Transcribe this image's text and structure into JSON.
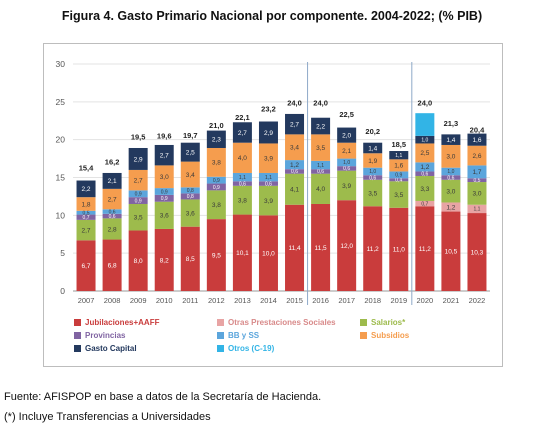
{
  "title": "Figura 4.  Gasto Primario Nacional por componente. 2004-2022; (% PIB)",
  "source_line": "Fuente: AFISPOP en base a datos de la Secretaría de Hacienda.",
  "note_line": "(*) Incluye Transferencias a Universidades",
  "chart_data": {
    "type": "bar",
    "stacked": true,
    "title": "Figura 4.  Gasto Primario Nacional por componente. 2004-2022; (% PIB)",
    "xlabel": "",
    "ylabel": "",
    "ylim": [
      0,
      30
    ],
    "yticks": [
      0,
      5,
      10,
      15,
      20,
      25,
      30
    ],
    "grid": true,
    "legend_position": "bottom",
    "separator_after_categories": [
      "2015",
      "2019"
    ],
    "categories": [
      "2007",
      "2008",
      "2009",
      "2010",
      "2011",
      "2012",
      "2013",
      "2014",
      "2015",
      "2016",
      "2017",
      "2018",
      "2019",
      "2020",
      "2021",
      "2022"
    ],
    "totals": [
      "15,4",
      "16,2",
      "19,5",
      "19,6",
      "19,7",
      "21,0",
      "22,1",
      "23,2",
      "24,0",
      "24,0",
      "22,5",
      "20,2",
      "18,5",
      "24,0",
      "21,3",
      "20,4"
    ],
    "total_values": [
      15.4,
      16.2,
      19.5,
      19.6,
      19.7,
      21.0,
      22.1,
      23.2,
      24.0,
      24.0,
      22.5,
      20.2,
      18.5,
      24.0,
      21.3,
      20.4
    ],
    "series": [
      {
        "name": "Jubilaciones+AAFF",
        "color": "#c93c3c",
        "values": [
          6.7,
          6.8,
          8.0,
          8.2,
          8.5,
          9.5,
          10.1,
          10.0,
          11.4,
          11.5,
          12.0,
          11.2,
          11.0,
          11.2,
          10.5,
          10.3
        ],
        "labels": [
          "6,7",
          "6,8",
          "8,0",
          "8,2",
          "8,5",
          "9,5",
          "10,1",
          "10,0",
          "11,4",
          "11,5",
          "12,0",
          "11,2",
          "11,0",
          "11,2",
          "10,5",
          "10,3"
        ]
      },
      {
        "name": "Otras Prestaciones Sociales",
        "color": "#e8a4a4",
        "values": [
          0,
          0,
          0,
          0,
          0,
          0,
          0,
          0,
          0,
          0,
          0,
          0,
          0,
          0.7,
          1.2,
          1.1
        ],
        "labels": [
          "",
          "",
          "",
          "",
          "",
          "",
          "",
          "",
          "",
          "",
          "",
          "",
          "",
          "0,7",
          "1,2",
          "1,1"
        ]
      },
      {
        "name": "Salarios*",
        "color": "#9dbb4c",
        "values": [
          2.7,
          2.8,
          3.5,
          3.6,
          3.6,
          3.8,
          3.8,
          3.9,
          4.1,
          4.0,
          3.9,
          3.5,
          3.5,
          3.3,
          3.0,
          3.0
        ],
        "labels": [
          "2,7",
          "2,8",
          "3,5",
          "3,6",
          "3,6",
          "3,8",
          "3,8",
          "3,9",
          "4,1",
          "4,0",
          "3,9",
          "3,5",
          "3,5",
          "3,3",
          "3,0",
          "3,0"
        ]
      },
      {
        "name": "Provincias",
        "color": "#8064a2",
        "values": [
          0.7,
          0.6,
          0.9,
          0.9,
          0.8,
          0.9,
          0.6,
          0.6,
          0.6,
          0.6,
          0.6,
          0.6,
          0.4,
          0.6,
          0.6,
          0.5
        ],
        "labels": [
          "0,7",
          "0,6",
          "0,9",
          "0,9",
          "0,8",
          "0,9",
          "0,6",
          "0,6",
          "0,6",
          "0,6",
          "0,6",
          "0,6",
          "0,4",
          "0,6",
          "0,6",
          "0,5"
        ]
      },
      {
        "name": "BB y SS",
        "color": "#5ba5dc",
        "values": [
          0.5,
          0.6,
          0.9,
          0.9,
          0.8,
          0.9,
          1.1,
          1.1,
          1.2,
          1.1,
          1.0,
          1.0,
          0.9,
          1.2,
          1.0,
          1.7
        ],
        "labels": [
          "0,5",
          "0,6",
          "0,9",
          "0,9",
          "0,8",
          "0,9",
          "1,1",
          "1,1",
          "1,2",
          "1,1",
          "1,0",
          "1,0",
          "0,9",
          "1,2",
          "1,0",
          "1,7"
        ]
      },
      {
        "name": "Subsidios",
        "color": "#f59d4e",
        "values": [
          1.8,
          2.7,
          2.7,
          3.0,
          3.4,
          3.8,
          4.0,
          3.9,
          3.4,
          3.5,
          2.1,
          1.9,
          1.6,
          2.5,
          3.0,
          2.6
        ],
        "labels": [
          "1,8",
          "2,7",
          "2,7",
          "3,0",
          "3,4",
          "3,8",
          "4,0",
          "3,9",
          "3,4",
          "3,5",
          "2,1",
          "1,9",
          "1,6",
          "2,5",
          "3,0",
          "2,6"
        ]
      },
      {
        "name": "Gasto Capital",
        "color": "#23395e",
        "values": [
          2.2,
          2.1,
          2.9,
          2.7,
          2.5,
          2.3,
          2.7,
          2.9,
          2.7,
          2.2,
          2.0,
          1.4,
          1.1,
          1.0,
          1.4,
          1.6
        ],
        "labels": [
          "2,2",
          "2,1",
          "2,9",
          "2,7",
          "2,5",
          "2,3",
          "2,7",
          "2,9",
          "2,7",
          "2,2",
          "2,0",
          "1,4",
          "1,1",
          "1,0",
          "1,4",
          "1,6"
        ]
      },
      {
        "name": "Otros (C-19)",
        "color": "#32b4e6",
        "values": [
          0,
          0,
          0,
          0,
          0,
          0,
          0,
          0,
          0,
          0,
          0,
          0,
          0,
          3.0,
          0,
          0
        ],
        "labels": [
          "",
          "",
          "",
          "",
          "",
          "",
          "",
          "",
          "",
          "",
          "",
          "",
          "",
          "",
          "",
          ""
        ]
      }
    ]
  }
}
